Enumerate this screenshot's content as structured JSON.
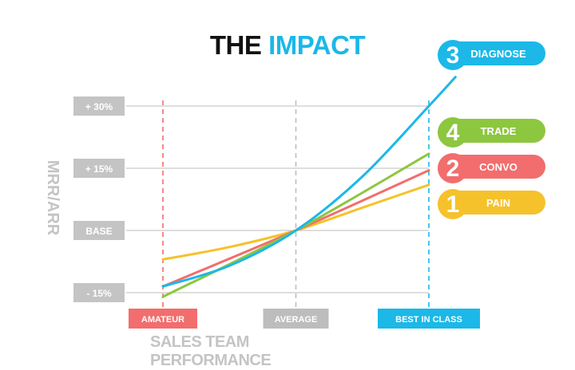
{
  "title": {
    "part1": "THE",
    "part2": "IMPACT"
  },
  "colors": {
    "diagnose": "#1bb8e8",
    "trade": "#8dc63f",
    "convo": "#f26d6d",
    "pain": "#f5c22b",
    "amateur": "#f26d6d",
    "average": "#bdbdbd",
    "best": "#1bb8e8",
    "ybox": "#c4c4c4",
    "grid": "#bdbdbd"
  },
  "chart_data": {
    "type": "line",
    "title": "THE IMPACT",
    "xlabel": "SALES TEAM PERFORMANCE",
    "ylabel": "MRR/ARR",
    "x_ticks": [
      {
        "label": "AMATEUR",
        "x": 0,
        "color": "#f26d6d"
      },
      {
        "label": "AVERAGE",
        "x": 1,
        "color": "#bdbdbd"
      },
      {
        "label": "BEST IN CLASS",
        "x": 2,
        "color": "#1bb8e8"
      }
    ],
    "y_ticks": [
      {
        "label": "+ 30%",
        "value": 30
      },
      {
        "label": "+ 15%",
        "value": 15
      },
      {
        "label": "BASE",
        "value": 0
      },
      {
        "label": "- 15%",
        "value": -15
      }
    ],
    "xlim": [
      -0.27,
      2.0
    ],
    "ylim": [
      -17,
      30
    ],
    "series": [
      {
        "name": "DIAGNOSE",
        "number": "3",
        "color": "#1bb8e8",
        "points": [
          [
            0,
            -13.5
          ],
          [
            0.5,
            -8.5
          ],
          [
            1,
            0
          ],
          [
            1.5,
            13
          ],
          [
            2,
            30
          ],
          [
            2.2,
            37
          ]
        ]
      },
      {
        "name": "TRADE",
        "number": "4",
        "color": "#8dc63f",
        "points": [
          [
            0,
            -16
          ],
          [
            1,
            0
          ],
          [
            2,
            18.5
          ]
        ]
      },
      {
        "name": "CONVO",
        "number": "2",
        "color": "#f26d6d",
        "points": [
          [
            0,
            -13.5
          ],
          [
            1,
            0
          ],
          [
            2,
            14.5
          ]
        ]
      },
      {
        "name": "PAIN",
        "number": "1",
        "color": "#f5c22b",
        "points": [
          [
            0,
            -7
          ],
          [
            0.5,
            -4
          ],
          [
            1,
            0
          ],
          [
            1.5,
            5.5
          ],
          [
            2,
            11
          ]
        ]
      }
    ]
  }
}
